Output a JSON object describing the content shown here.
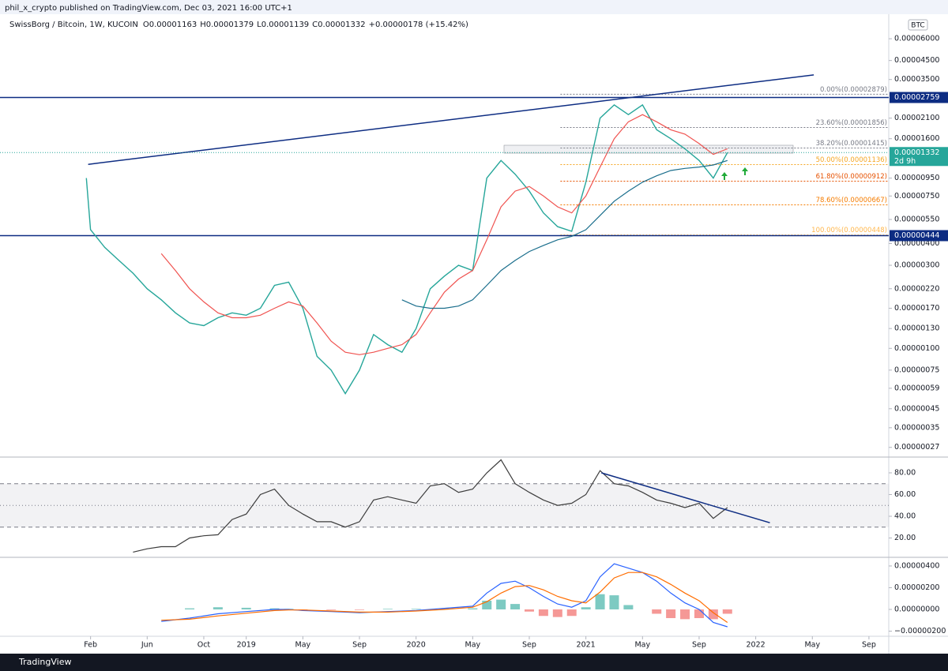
{
  "header": {
    "publisher": "phil_x_crypto published on TradingView.com, Dec 03, 2021 16:00 UTC+1",
    "symbol": "SwissBorg / Bitcoin, 1W, KUCOIN",
    "open": "O0.00001163",
    "high": "H0.00001379",
    "low": "L0.00001139",
    "close": "C0.00001332",
    "change": "+0.00000178 (+15.42%)"
  },
  "footer": {
    "brand": "TradingView"
  },
  "chart_data": [
    {
      "type": "line",
      "log_scale": true,
      "unit": "BTC",
      "xlim": [
        -5.4,
        57.4
      ],
      "xticks": [
        {
          "value": 1,
          "label": "Feb"
        },
        {
          "value": 5,
          "label": "Jun"
        },
        {
          "value": 9,
          "label": "Oct"
        },
        {
          "value": 12,
          "label": "2019"
        },
        {
          "value": 16,
          "label": "May"
        },
        {
          "value": 20,
          "label": "Sep"
        },
        {
          "value": 24,
          "label": "2020"
        },
        {
          "value": 28,
          "label": "May"
        },
        {
          "value": 32,
          "label": "Sep"
        },
        {
          "value": 36,
          "label": "2021"
        },
        {
          "value": 40,
          "label": "May"
        },
        {
          "value": 44,
          "label": "Sep"
        },
        {
          "value": 48,
          "label": "2022"
        },
        {
          "value": 52,
          "label": "May"
        },
        {
          "value": 56,
          "label": "Sep"
        }
      ],
      "ylim": [
        2.4e-07,
        8.3e-05
      ],
      "yticks": [
        {
          "value": 6e-05,
          "label": "0.00006000"
        },
        {
          "value": 4.5e-05,
          "label": "0.00004500"
        },
        {
          "value": 3.5e-05,
          "label": "0.00003500"
        },
        {
          "value": 2.1e-05,
          "label": "0.00002100"
        },
        {
          "value": 1.6e-05,
          "label": "0.00001600"
        },
        {
          "value": 9.5e-06,
          "label": "0.00000950"
        },
        {
          "value": 7.5e-06,
          "label": "0.00000750"
        },
        {
          "value": 5.5e-06,
          "label": "0.00000550"
        },
        {
          "value": 4e-06,
          "label": "0.00000400"
        },
        {
          "value": 3e-06,
          "label": "0.00000300"
        },
        {
          "value": 2.2e-06,
          "label": "0.00000220"
        },
        {
          "value": 1.7e-06,
          "label": "0.00000170"
        },
        {
          "value": 1.3e-06,
          "label": "0.00000130"
        },
        {
          "value": 1e-06,
          "label": "0.00000100"
        },
        {
          "value": 7.5e-07,
          "label": "0.00000075"
        },
        {
          "value": 5.9e-07,
          "label": "0.00000059"
        },
        {
          "value": 4.5e-07,
          "label": "0.00000045"
        },
        {
          "value": 3.5e-07,
          "label": "0.00000035"
        },
        {
          "value": 2.7e-07,
          "label": "0.00000027"
        }
      ],
      "series": [
        {
          "color": "#26a69a",
          "x": [
            0.7,
            1,
            2,
            3,
            4,
            5,
            6,
            7,
            8,
            9,
            10,
            11,
            12,
            13,
            14,
            15,
            16,
            17,
            18,
            19,
            20,
            21,
            22,
            23,
            24,
            25,
            26,
            27,
            28,
            29,
            30,
            31,
            32,
            33,
            34,
            35,
            36,
            37,
            38,
            39,
            40,
            41,
            42,
            43,
            44,
            45,
            46
          ],
          "values": [
            9.5e-06,
            4.8e-06,
            3.8e-06,
            3.2e-06,
            2.7e-06,
            2.2e-06,
            1.9e-06,
            1.6e-06,
            1.4e-06,
            1.35e-06,
            1.5e-06,
            1.6e-06,
            1.55e-06,
            1.7e-06,
            2.3e-06,
            2.4e-06,
            1.7e-06,
            9e-07,
            7.5e-07,
            5.5e-07,
            7.5e-07,
            1.2e-06,
            1.05e-06,
            9.5e-07,
            1.3e-06,
            2.2e-06,
            2.6e-06,
            3e-06,
            2.8e-06,
            9.5e-06,
            1.2e-05,
            1e-05,
            8e-06,
            6e-06,
            5e-06,
            4.7e-06,
            9e-06,
            2.1e-05,
            2.5e-05,
            2.2e-05,
            2.5e-05,
            1.8e-05,
            1.6e-05,
            1.4e-05,
            1.2e-05,
            9.5e-06,
            1.332e-05
          ]
        },
        {
          "color": "#f05350",
          "x": [
            6,
            7,
            8,
            9,
            10,
            11,
            12,
            13,
            14,
            15,
            16,
            17,
            18,
            19,
            20,
            21,
            22,
            23,
            24,
            25,
            26,
            27,
            28,
            29,
            30,
            31,
            32,
            33,
            34,
            35,
            36,
            37,
            38,
            39,
            40,
            41,
            42,
            43,
            44,
            45,
            46
          ],
          "values": [
            3.5e-06,
            2.8e-06,
            2.2e-06,
            1.85e-06,
            1.6e-06,
            1.5e-06,
            1.5e-06,
            1.55e-06,
            1.7e-06,
            1.85e-06,
            1.75e-06,
            1.4e-06,
            1.1e-06,
            9.5e-07,
            9.2e-07,
            9.5e-07,
            1e-06,
            1.05e-06,
            1.2e-06,
            1.6e-06,
            2.1e-06,
            2.5e-06,
            2.8e-06,
            4.2e-06,
            6.5e-06,
            8e-06,
            8.5e-06,
            7.5e-06,
            6.5e-06,
            6e-06,
            7.5e-06,
            1.1e-05,
            1.6e-05,
            2e-05,
            2.2e-05,
            2e-05,
            1.8e-05,
            1.7e-05,
            1.5e-05,
            1.3e-05,
            1.4e-05
          ]
        },
        {
          "color": "#1a6e8c",
          "x": [
            23,
            24,
            25,
            26,
            27,
            28,
            29,
            30,
            31,
            32,
            33,
            34,
            35,
            36,
            37,
            38,
            39,
            40,
            41,
            42,
            43,
            44,
            45,
            46
          ],
          "values": [
            1.9e-06,
            1.75e-06,
            1.7e-06,
            1.7e-06,
            1.75e-06,
            1.9e-06,
            2.3e-06,
            2.8e-06,
            3.2e-06,
            3.6e-06,
            3.9e-06,
            4.2e-06,
            4.4e-06,
            4.8e-06,
            5.8e-06,
            7e-06,
            8e-06,
            9e-06,
            9.8e-06,
            1.05e-05,
            1.08e-05,
            1.1e-05,
            1.13e-05,
            1.2e-05
          ]
        }
      ],
      "hlines": [
        {
          "value": 2.759e-05,
          "label": "0.00002759",
          "color": "#0d2c82"
        },
        {
          "value": 4.44e-06,
          "label": "0.00000444",
          "color": "#0d2c82"
        }
      ],
      "last_price": {
        "value": 1.332e-05,
        "label": "0.00001332",
        "countdown": "2d 9h",
        "color": "#26a69a"
      },
      "trendline": {
        "x": [
          0.83,
          52.1
        ],
        "values": [
          1.14e-05,
          3.72e-05
        ],
        "color": "#0d2c82"
      },
      "fib": {
        "x_start": 34.2,
        "levels": [
          {
            "value": 2.879e-05,
            "label": "0.00%(0.00002879)",
            "color": "#787b86"
          },
          {
            "value": 1.856e-05,
            "label": "23.60%(0.00001856)",
            "color": "#787b86"
          },
          {
            "value": 1.415e-05,
            "label": "38.20%(0.00001415)",
            "color": "#787b86"
          },
          {
            "value": 1.136e-05,
            "label": "50.00%(0.00001136)",
            "color": "#f5a623"
          },
          {
            "value": 9.12e-06,
            "label": "61.80%(0.00000912)",
            "color": "#e65100"
          },
          {
            "value": 6.67e-06,
            "label": "78.60%(0.00000667)",
            "color": "#f57c00"
          },
          {
            "value": 4.48e-06,
            "label": "100.00%(0.00000448)",
            "color": "#ffb74d"
          }
        ]
      }
    },
    {
      "type": "line",
      "ylim": [
        2.9,
        93.8
      ],
      "yticks": [
        {
          "value": 80,
          "label": "80.00"
        },
        {
          "value": 60,
          "label": "60.00"
        },
        {
          "value": 40,
          "label": "40.00"
        },
        {
          "value": 20,
          "label": "20.00"
        }
      ],
      "bands": [
        30,
        70
      ],
      "midline": 50,
      "series": [
        {
          "color": "#3c3c3c",
          "x": [
            4,
            5,
            6,
            7,
            8,
            9,
            10,
            11,
            12,
            13,
            14,
            15,
            16,
            17,
            18,
            19,
            20,
            21,
            22,
            23,
            24,
            25,
            26,
            27,
            28,
            29,
            30,
            31,
            32,
            33,
            34,
            35,
            36,
            37,
            38,
            39,
            40,
            41,
            42,
            43,
            44,
            45,
            46
          ],
          "values": [
            7,
            10,
            12,
            12,
            20,
            22,
            23,
            37,
            42,
            60,
            65,
            50,
            42,
            35,
            35,
            30,
            35,
            55,
            58,
            55,
            52,
            68,
            70,
            62,
            65,
            80,
            92,
            70,
            62,
            55,
            50,
            52,
            60,
            82,
            70,
            68,
            62,
            55,
            52,
            48,
            52,
            38,
            48
          ]
        }
      ],
      "trendline": {
        "x": [
          37.1,
          49.0
        ],
        "values": [
          80,
          34
        ],
        "color": "#0d2c82"
      }
    },
    {
      "type": "macd",
      "ylim": [
        -2.4e-06,
        4.65e-06
      ],
      "yticks": [
        {
          "value": 4e-06,
          "label": "0.00000400"
        },
        {
          "value": 2e-06,
          "label": "0.00000200"
        },
        {
          "value": 0,
          "label": "0.00000000"
        },
        {
          "value": -2e-06,
          "label": "−0.00000200"
        }
      ],
      "series": [
        {
          "color": "#2962ff",
          "x": [
            6,
            8,
            10,
            12,
            14,
            15,
            16,
            18,
            20,
            22,
            24,
            26,
            28,
            29,
            30,
            31,
            32,
            33,
            34,
            35,
            36,
            37,
            38,
            39,
            40,
            41,
            42,
            43,
            44,
            45,
            46
          ],
          "values": [
            -1.1e-06,
            -8e-07,
            -4e-07,
            -2e-07,
            0,
            0,
            -1e-07,
            -2e-07,
            -3e-07,
            -2e-07,
            -1e-07,
            1e-07,
            3e-07,
            1.5e-06,
            2.4e-06,
            2.6e-06,
            2e-06,
            1.2e-06,
            5e-07,
            2e-07,
            8e-07,
            3e-06,
            4.2e-06,
            3.8e-06,
            3.4e-06,
            2.6e-06,
            1.5e-06,
            6e-07,
            0,
            -1.2e-06,
            -1.6e-06
          ]
        },
        {
          "color": "#ff6d00",
          "x": [
            6,
            8,
            10,
            12,
            14,
            15,
            16,
            18,
            20,
            22,
            24,
            26,
            28,
            29,
            30,
            31,
            32,
            33,
            34,
            35,
            36,
            37,
            38,
            39,
            40,
            41,
            42,
            43,
            44,
            45,
            46
          ],
          "values": [
            -1e-06,
            -9e-07,
            -6e-07,
            -3.5e-07,
            -1e-07,
            -5e-08,
            -5e-08,
            -1.5e-07,
            -2.5e-07,
            -2.5e-07,
            -1.5e-07,
            0,
            2e-07,
            7e-07,
            1.5e-06,
            2.1e-06,
            2.2e-06,
            1.8e-06,
            1.2e-06,
            8e-07,
            6e-07,
            1.6e-06,
            2.9e-06,
            3.4e-06,
            3.4e-06,
            3e-06,
            2.3e-06,
            1.5e-06,
            8e-07,
            -3e-07,
            -1.2e-06
          ]
        }
      ],
      "histogram": {
        "up_color": "#26a69a",
        "down_color": "#ef5350",
        "x": [
          8,
          10,
          12,
          14,
          15,
          16,
          18,
          20,
          22,
          24,
          26,
          28,
          29,
          30,
          31,
          32,
          33,
          34,
          35,
          36,
          37,
          38,
          39,
          40,
          41,
          42,
          43,
          44,
          45,
          46
        ],
        "values": [
          1e-07,
          2e-07,
          1.5e-07,
          1e-07,
          5e-08,
          -5e-08,
          -5e-08,
          -5e-08,
          5e-08,
          5e-08,
          1e-07,
          1e-07,
          8e-07,
          9e-07,
          5e-07,
          -2e-07,
          -6e-07,
          -7e-07,
          -6e-07,
          2e-07,
          1.4e-06,
          1.3e-06,
          4e-07,
          0,
          -4e-07,
          -8e-07,
          -9e-07,
          -8e-07,
          -9e-07,
          -4e-07
        ]
      }
    }
  ]
}
